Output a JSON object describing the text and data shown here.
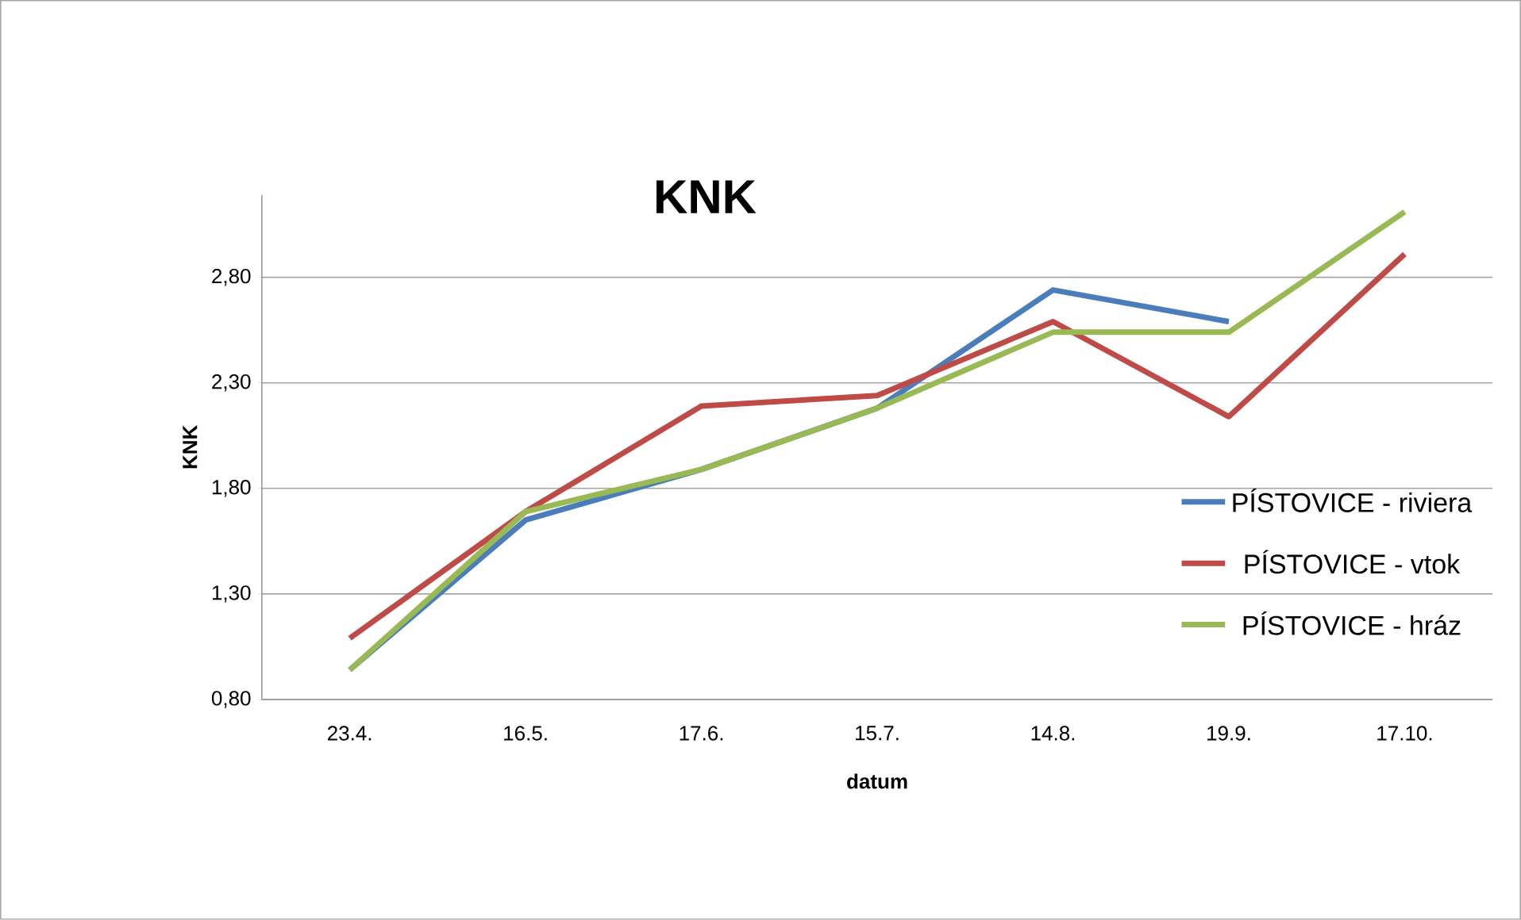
{
  "chart_data": {
    "type": "line",
    "title": "KNK",
    "xlabel": "datum",
    "ylabel": "KNK",
    "categories": [
      "23.4.",
      "16.5.",
      "17.6.",
      "15.7.",
      "14.8.",
      "19.9.",
      "17.10."
    ],
    "series": [
      {
        "name": "PÍSTOVICE - riviera",
        "color": "#4a7ebb",
        "values": [
          0.94,
          1.65,
          1.89,
          2.18,
          2.74,
          2.59,
          null
        ]
      },
      {
        "name": "PÍSTOVICE - vtok",
        "color": "#be4b48",
        "values": [
          1.09,
          1.69,
          2.19,
          2.24,
          2.59,
          2.14,
          2.91
        ]
      },
      {
        "name": "PÍSTOVICE - hráz",
        "color": "#98b954",
        "values": [
          0.94,
          1.69,
          1.89,
          2.18,
          2.54,
          2.54,
          3.11
        ]
      }
    ],
    "ylim": [
      0.8,
      3.19
    ],
    "yticks": [
      {
        "value": 0.8,
        "label": "0,80"
      },
      {
        "value": 1.3,
        "label": "1,30"
      },
      {
        "value": 1.8,
        "label": "1,80"
      },
      {
        "value": 2.3,
        "label": "2,30"
      },
      {
        "value": 2.8,
        "label": "2,80"
      }
    ],
    "grid": "y",
    "legend": "right",
    "marker": "none",
    "line_style": "solid"
  }
}
